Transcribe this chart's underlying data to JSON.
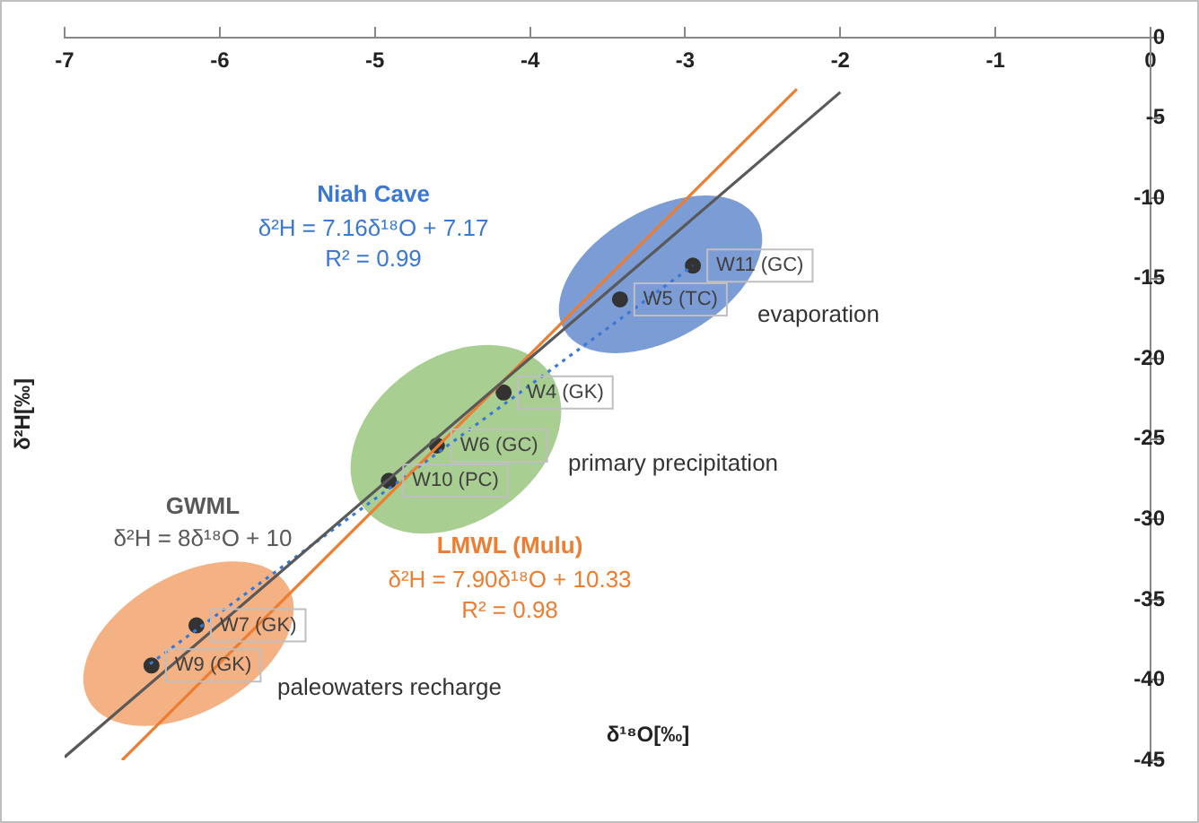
{
  "chart_data": {
    "type": "scatter",
    "xlabel": "δ¹⁸O[‰]",
    "ylabel": "δ²H[‰]",
    "xlim": [
      -7,
      0
    ],
    "xticks": [
      -7,
      -6,
      -5,
      -4,
      -3,
      -2,
      -1,
      0
    ],
    "ylim": [
      -45,
      0
    ],
    "yticks": [
      0,
      -5,
      -10,
      -15,
      -20,
      -25,
      -30,
      -35,
      -40,
      -45
    ],
    "grid": false,
    "legend": false,
    "series": [
      {
        "name": "GWML",
        "type": "line",
        "color": "#595959",
        "x": [
          -7.0,
          -2.0
        ],
        "values": [
          -44.8,
          -3.4
        ],
        "marker": "none",
        "line_style": "solid"
      },
      {
        "name": "LMWL (Mulu)",
        "type": "line",
        "color": "#ed7d31",
        "x": [
          -6.63,
          -2.28
        ],
        "values": [
          -45,
          -3.2
        ],
        "marker": "none",
        "line_style": "solid"
      },
      {
        "name": "Niah Cave",
        "type": "line",
        "color": "#3a78d4",
        "x": [
          -6.45,
          -2.95
        ],
        "values": [
          -39.0,
          -14.2
        ],
        "marker": "none",
        "line_style": "dotted"
      },
      {
        "type": "scatter",
        "color": "#333333",
        "marker": "circle",
        "x": [
          -2.95,
          -3.42,
          -4.17,
          -4.6,
          -4.91,
          -6.15,
          -6.44
        ],
        "values": [
          -14.2,
          -16.3,
          -22.1,
          -25.4,
          -27.6,
          -36.6,
          -39.1
        ],
        "value_labels": [
          "W11 (GC)",
          "W5 (TC)",
          "W4 (GK)",
          "W6 (GC)",
          "W10 (PC)",
          "W7 (GK)",
          "W9 (GK)"
        ]
      }
    ],
    "annotations": [
      "δ²H = 7.16δ¹⁸O + 7.17",
      "R² = 0.99",
      "δ²H = 8δ¹⁸O + 10",
      "δ²H = 7.90δ¹⁸O + 10.33",
      "R² = 0.98",
      "evaporation",
      "primary precipitation",
      "paleowaters recharge"
    ]
  }
}
